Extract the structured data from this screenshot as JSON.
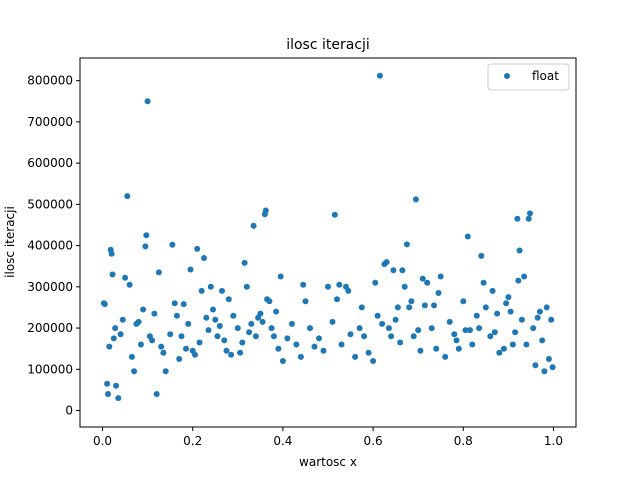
{
  "chart_data": {
    "type": "scatter",
    "title": "ilosc iteracji",
    "xlabel": "wartosc x",
    "ylabel": "ilosc iteracji",
    "xlim": [
      -0.05,
      1.05
    ],
    "ylim": [
      -40000,
      855000
    ],
    "xticks": [
      0.0,
      0.2,
      0.4,
      0.6,
      0.8,
      1.0
    ],
    "xtick_labels": [
      "0.0",
      "0.2",
      "0.4",
      "0.6",
      "0.8",
      "1.0"
    ],
    "yticks": [
      0,
      100000,
      200000,
      300000,
      400000,
      500000,
      600000,
      700000,
      800000
    ],
    "ytick_labels": [
      "0",
      "100000",
      "200000",
      "300000",
      "400000",
      "500000",
      "600000",
      "700000",
      "800000"
    ],
    "grid": false,
    "legend": "upper right",
    "series": [
      {
        "name": "float",
        "color": "#1f77b4",
        "points": [
          [
            0.003,
            260000
          ],
          [
            0.005,
            258000
          ],
          [
            0.01,
            65000
          ],
          [
            0.012,
            40000
          ],
          [
            0.015,
            155000
          ],
          [
            0.018,
            390000
          ],
          [
            0.02,
            380000
          ],
          [
            0.022,
            330000
          ],
          [
            0.025,
            175000
          ],
          [
            0.028,
            200000
          ],
          [
            0.03,
            60000
          ],
          [
            0.035,
            30000
          ],
          [
            0.04,
            185000
          ],
          [
            0.045,
            220000
          ],
          [
            0.05,
            322000
          ],
          [
            0.055,
            520000
          ],
          [
            0.06,
            305000
          ],
          [
            0.065,
            130000
          ],
          [
            0.07,
            95000
          ],
          [
            0.075,
            210000
          ],
          [
            0.08,
            215000
          ],
          [
            0.085,
            160000
          ],
          [
            0.09,
            245000
          ],
          [
            0.095,
            398000
          ],
          [
            0.097,
            425000
          ],
          [
            0.1,
            750000
          ],
          [
            0.105,
            180000
          ],
          [
            0.11,
            170000
          ],
          [
            0.115,
            235000
          ],
          [
            0.12,
            40000
          ],
          [
            0.125,
            335000
          ],
          [
            0.13,
            155000
          ],
          [
            0.135,
            140000
          ],
          [
            0.14,
            95000
          ],
          [
            0.15,
            185000
          ],
          [
            0.155,
            402000
          ],
          [
            0.16,
            260000
          ],
          [
            0.165,
            230000
          ],
          [
            0.17,
            125000
          ],
          [
            0.175,
            180000
          ],
          [
            0.18,
            258000
          ],
          [
            0.185,
            150000
          ],
          [
            0.19,
            210000
          ],
          [
            0.195,
            342000
          ],
          [
            0.2,
            145000
          ],
          [
            0.205,
            135000
          ],
          [
            0.21,
            392000
          ],
          [
            0.215,
            165000
          ],
          [
            0.22,
            290000
          ],
          [
            0.225,
            370000
          ],
          [
            0.23,
            225000
          ],
          [
            0.235,
            195000
          ],
          [
            0.24,
            300000
          ],
          [
            0.245,
            245000
          ],
          [
            0.25,
            220000
          ],
          [
            0.255,
            180000
          ],
          [
            0.26,
            205000
          ],
          [
            0.265,
            290000
          ],
          [
            0.27,
            170000
          ],
          [
            0.275,
            145000
          ],
          [
            0.28,
            270000
          ],
          [
            0.285,
            135000
          ],
          [
            0.29,
            230000
          ],
          [
            0.3,
            200000
          ],
          [
            0.305,
            140000
          ],
          [
            0.31,
            165000
          ],
          [
            0.315,
            358000
          ],
          [
            0.32,
            300000
          ],
          [
            0.325,
            190000
          ],
          [
            0.33,
            210000
          ],
          [
            0.335,
            448000
          ],
          [
            0.34,
            180000
          ],
          [
            0.345,
            225000
          ],
          [
            0.35,
            235000
          ],
          [
            0.355,
            215000
          ],
          [
            0.36,
            476000
          ],
          [
            0.362,
            485000
          ],
          [
            0.365,
            270000
          ],
          [
            0.37,
            265000
          ],
          [
            0.375,
            200000
          ],
          [
            0.38,
            180000
          ],
          [
            0.385,
            240000
          ],
          [
            0.39,
            150000
          ],
          [
            0.395,
            325000
          ],
          [
            0.4,
            120000
          ],
          [
            0.41,
            175000
          ],
          [
            0.42,
            210000
          ],
          [
            0.43,
            160000
          ],
          [
            0.44,
            130000
          ],
          [
            0.445,
            305000
          ],
          [
            0.45,
            265000
          ],
          [
            0.46,
            200000
          ],
          [
            0.47,
            155000
          ],
          [
            0.48,
            175000
          ],
          [
            0.49,
            145000
          ],
          [
            0.5,
            300000
          ],
          [
            0.51,
            215000
          ],
          [
            0.515,
            475000
          ],
          [
            0.52,
            270000
          ],
          [
            0.525,
            305000
          ],
          [
            0.53,
            160000
          ],
          [
            0.54,
            300000
          ],
          [
            0.545,
            290000
          ],
          [
            0.55,
            185000
          ],
          [
            0.56,
            130000
          ],
          [
            0.57,
            200000
          ],
          [
            0.575,
            250000
          ],
          [
            0.58,
            180000
          ],
          [
            0.59,
            140000
          ],
          [
            0.6,
            120000
          ],
          [
            0.605,
            310000
          ],
          [
            0.61,
            230000
          ],
          [
            0.615,
            812000
          ],
          [
            0.62,
            210000
          ],
          [
            0.625,
            355000
          ],
          [
            0.63,
            360000
          ],
          [
            0.635,
            200000
          ],
          [
            0.64,
            180000
          ],
          [
            0.645,
            340000
          ],
          [
            0.65,
            220000
          ],
          [
            0.655,
            250000
          ],
          [
            0.66,
            165000
          ],
          [
            0.665,
            340000
          ],
          [
            0.67,
            300000
          ],
          [
            0.675,
            403000
          ],
          [
            0.68,
            250000
          ],
          [
            0.685,
            265000
          ],
          [
            0.69,
            180000
          ],
          [
            0.695,
            512000
          ],
          [
            0.7,
            195000
          ],
          [
            0.705,
            145000
          ],
          [
            0.71,
            320000
          ],
          [
            0.715,
            255000
          ],
          [
            0.72,
            310000
          ],
          [
            0.73,
            200000
          ],
          [
            0.735,
            255000
          ],
          [
            0.74,
            150000
          ],
          [
            0.745,
            285000
          ],
          [
            0.75,
            325000
          ],
          [
            0.76,
            130000
          ],
          [
            0.77,
            215000
          ],
          [
            0.78,
            185000
          ],
          [
            0.785,
            170000
          ],
          [
            0.79,
            150000
          ],
          [
            0.8,
            265000
          ],
          [
            0.805,
            195000
          ],
          [
            0.81,
            422000
          ],
          [
            0.815,
            195000
          ],
          [
            0.82,
            160000
          ],
          [
            0.83,
            230000
          ],
          [
            0.835,
            200000
          ],
          [
            0.84,
            375000
          ],
          [
            0.845,
            310000
          ],
          [
            0.85,
            250000
          ],
          [
            0.86,
            180000
          ],
          [
            0.865,
            290000
          ],
          [
            0.87,
            190000
          ],
          [
            0.875,
            235000
          ],
          [
            0.88,
            140000
          ],
          [
            0.89,
            150000
          ],
          [
            0.895,
            260000
          ],
          [
            0.9,
            275000
          ],
          [
            0.905,
            240000
          ],
          [
            0.91,
            160000
          ],
          [
            0.915,
            190000
          ],
          [
            0.92,
            465000
          ],
          [
            0.922,
            315000
          ],
          [
            0.925,
            388000
          ],
          [
            0.93,
            220000
          ],
          [
            0.935,
            325000
          ],
          [
            0.94,
            160000
          ],
          [
            0.945,
            465000
          ],
          [
            0.948,
            478000
          ],
          [
            0.955,
            200000
          ],
          [
            0.96,
            110000
          ],
          [
            0.965,
            225000
          ],
          [
            0.97,
            240000
          ],
          [
            0.975,
            170000
          ],
          [
            0.98,
            95000
          ],
          [
            0.985,
            250000
          ],
          [
            0.99,
            125000
          ],
          [
            0.995,
            220000
          ],
          [
            0.998,
            105000
          ]
        ]
      }
    ]
  }
}
